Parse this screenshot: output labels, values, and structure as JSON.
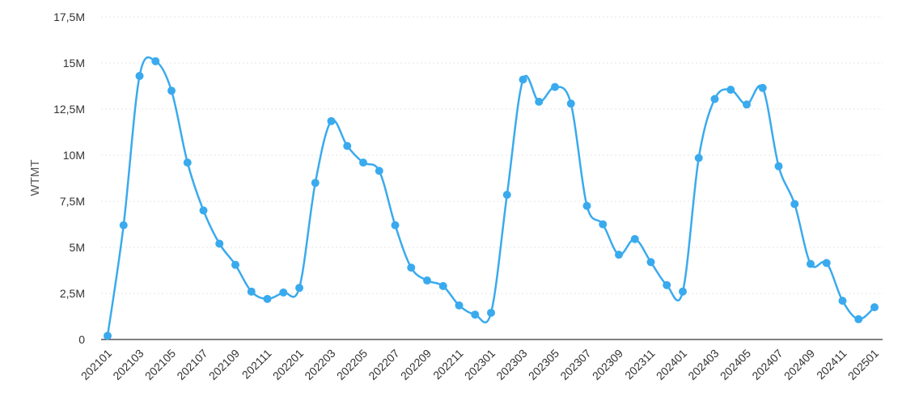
{
  "chart_data": {
    "type": "line",
    "title": "",
    "xlabel": "",
    "ylabel": "WTMT",
    "ylim": [
      0,
      17500000
    ],
    "yticks": [
      0,
      2500000,
      5000000,
      7500000,
      10000000,
      12500000,
      15000000,
      17500000
    ],
    "ytick_labels": [
      "0",
      "2,5M",
      "5M",
      "7,5M",
      "10M",
      "12,5M",
      "15M",
      "17,5M"
    ],
    "xtick_labels": [
      "202101",
      "202103",
      "202105",
      "202107",
      "202109",
      "202111",
      "202201",
      "202203",
      "202205",
      "202207",
      "202209",
      "202211",
      "202301",
      "202303",
      "202305",
      "202307",
      "202309",
      "202311",
      "202401",
      "202403",
      "202405",
      "202407",
      "202409",
      "202411",
      "202501"
    ],
    "grid": true,
    "legend": "none",
    "colors": {
      "series": "#3aaaee",
      "grid": "#e6e6e6",
      "axis": "#333333"
    },
    "series": [
      {
        "x": [
          "202101",
          "202102",
          "202103",
          "202104",
          "202105",
          "202106",
          "202107",
          "202108",
          "202109",
          "202110",
          "202111",
          "202112",
          "202201",
          "202202",
          "202203",
          "202204",
          "202205",
          "202206",
          "202207",
          "202208",
          "202209",
          "202210",
          "202211",
          "202212",
          "202301",
          "202302",
          "202303",
          "202304",
          "202305",
          "202306",
          "202307",
          "202308",
          "202309",
          "202310",
          "202311",
          "202312",
          "202401",
          "202402",
          "202403",
          "202404",
          "202405",
          "202406",
          "202407",
          "202408",
          "202409",
          "202410",
          "202411",
          "202412",
          "202501"
        ],
        "values": [
          200000,
          6200000,
          14300000,
          15100000,
          13500000,
          9600000,
          7000000,
          5200000,
          4050000,
          2600000,
          2200000,
          2550000,
          2800000,
          8500000,
          11850000,
          10500000,
          9600000,
          9150000,
          6200000,
          3900000,
          3200000,
          2900000,
          1850000,
          1350000,
          1450000,
          7850000,
          14100000,
          12900000,
          13700000,
          12800000,
          7250000,
          6250000,
          4600000,
          5450000,
          4200000,
          2950000,
          2600000,
          9850000,
          13050000,
          13550000,
          12750000,
          13650000,
          9400000,
          7350000,
          4100000,
          4150000,
          2100000,
          1100000,
          1750000
        ]
      }
    ]
  }
}
